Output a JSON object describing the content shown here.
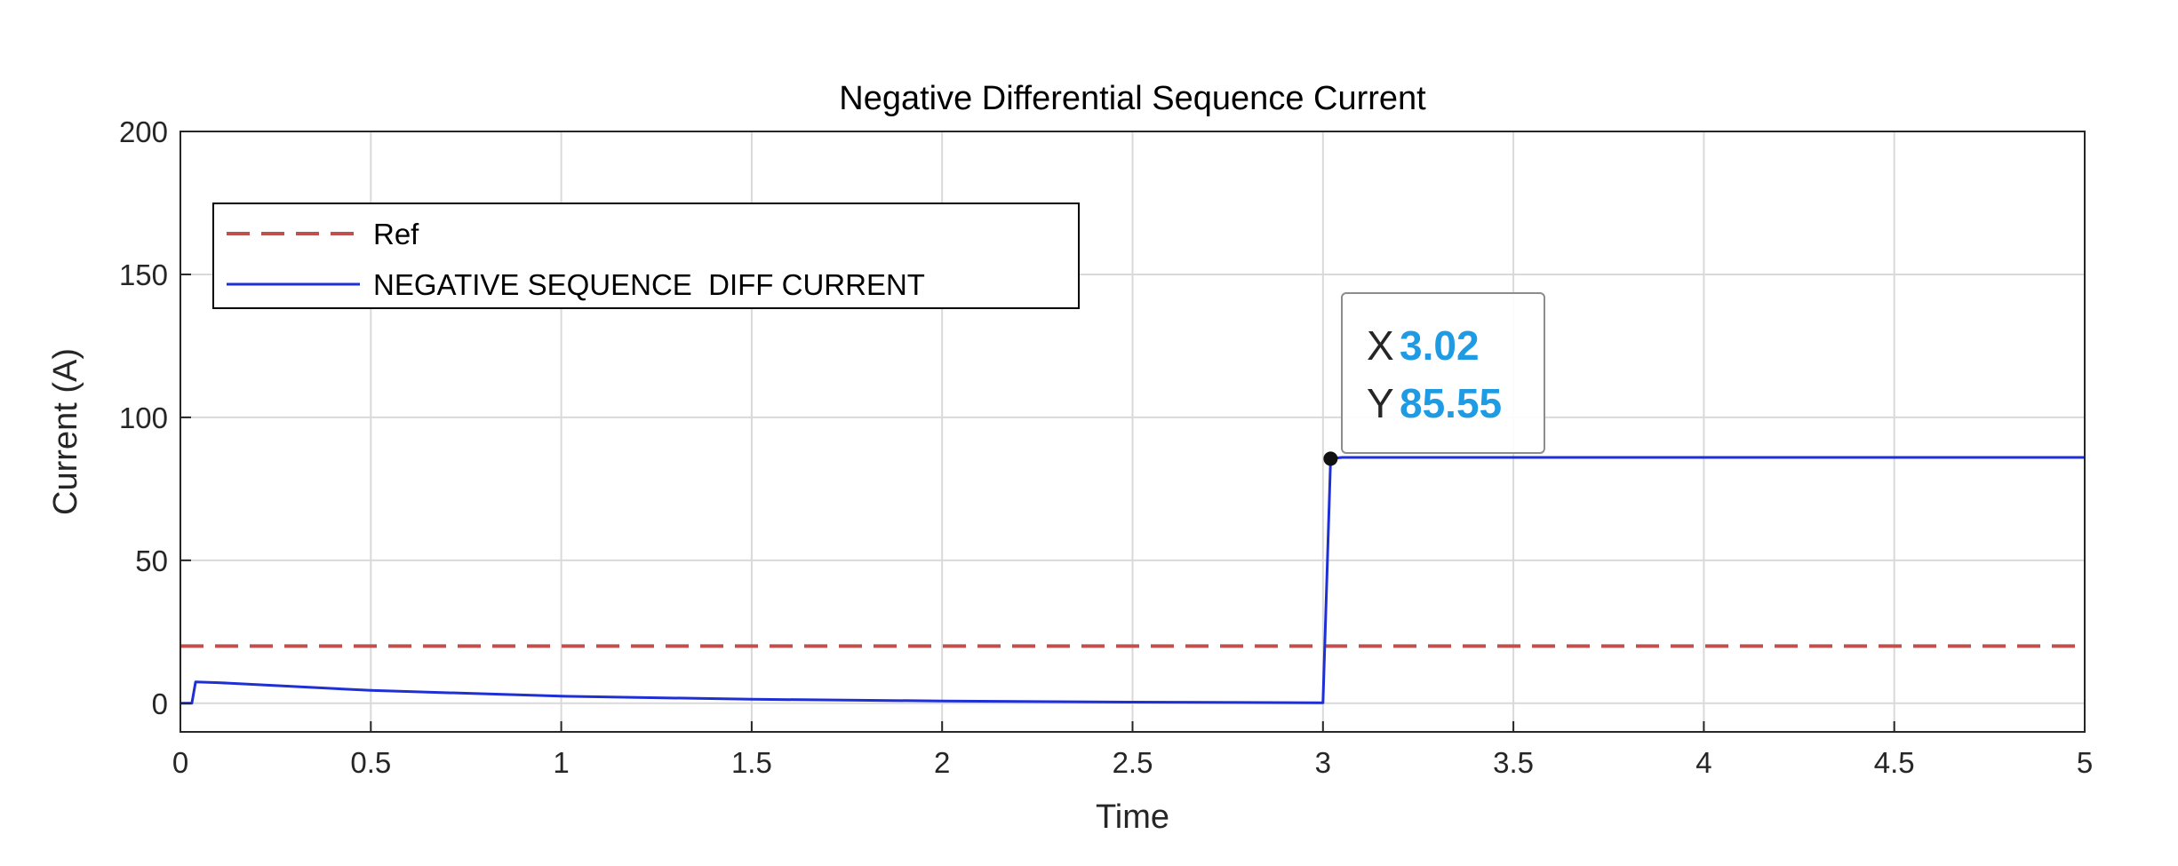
{
  "chart_data": {
    "type": "line",
    "title": "Negative Differential Sequence Current",
    "xlabel": "Time",
    "ylabel": "Current (A)",
    "xlim": [
      0,
      5
    ],
    "ylim": [
      -10,
      200
    ],
    "xticks": [
      0,
      0.5,
      1,
      1.5,
      2,
      2.5,
      3,
      3.5,
      4,
      4.5,
      5
    ],
    "xtick_labels": [
      "0",
      "0.5",
      "1",
      "1.5",
      "2",
      "2.5",
      "3",
      "3.5",
      "4",
      "4.5",
      "5"
    ],
    "yticks": [
      0,
      50,
      100,
      150,
      200
    ],
    "ytick_labels": [
      "0",
      "50",
      "100",
      "150",
      "200"
    ],
    "grid": true,
    "legend_position": "top-left",
    "series": [
      {
        "name": "Ref",
        "color": "#c0504d",
        "style": "dashed",
        "x": [
          0,
          5
        ],
        "y": [
          20,
          20
        ]
      },
      {
        "name": "NEGATIVE SEQUENCE  DIFF CURRENT",
        "color": "#1f2fd6",
        "style": "solid",
        "x": [
          0,
          0.03,
          0.04,
          0.1,
          0.5,
          1.0,
          1.5,
          2.0,
          2.5,
          2.99,
          3.0,
          3.02,
          3.05,
          5.0
        ],
        "y": [
          0,
          0,
          7.5,
          7.2,
          4.5,
          2.5,
          1.4,
          0.8,
          0.4,
          0.2,
          0.2,
          85.55,
          86,
          86
        ]
      }
    ],
    "datatip": {
      "x": 3.02,
      "y": 85.55,
      "x_prefix": "X",
      "y_prefix": "Y",
      "x_label": "3.02",
      "y_label": "85.55"
    }
  }
}
